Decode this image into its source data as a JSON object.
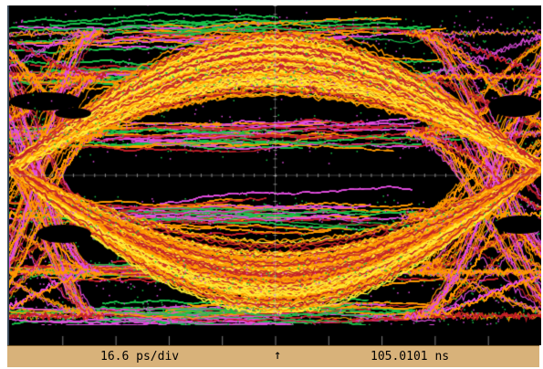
{
  "status_bar": {
    "timebase": "16.6 ps/div",
    "trigger_marker": "↑",
    "position": "105.0101 ns"
  },
  "display": {
    "type": "eye-diagram",
    "grid_divisions_x": 10,
    "grid_divisions_y": 8,
    "colors": {
      "background": "#000000",
      "low_density": "#19c24a",
      "mid_low_density": "#e24de0",
      "mid_density": "#c4202a",
      "high_density": "#ff9a00",
      "peak_density": "#ffee33",
      "status_bar": "#d8b27a"
    }
  }
}
